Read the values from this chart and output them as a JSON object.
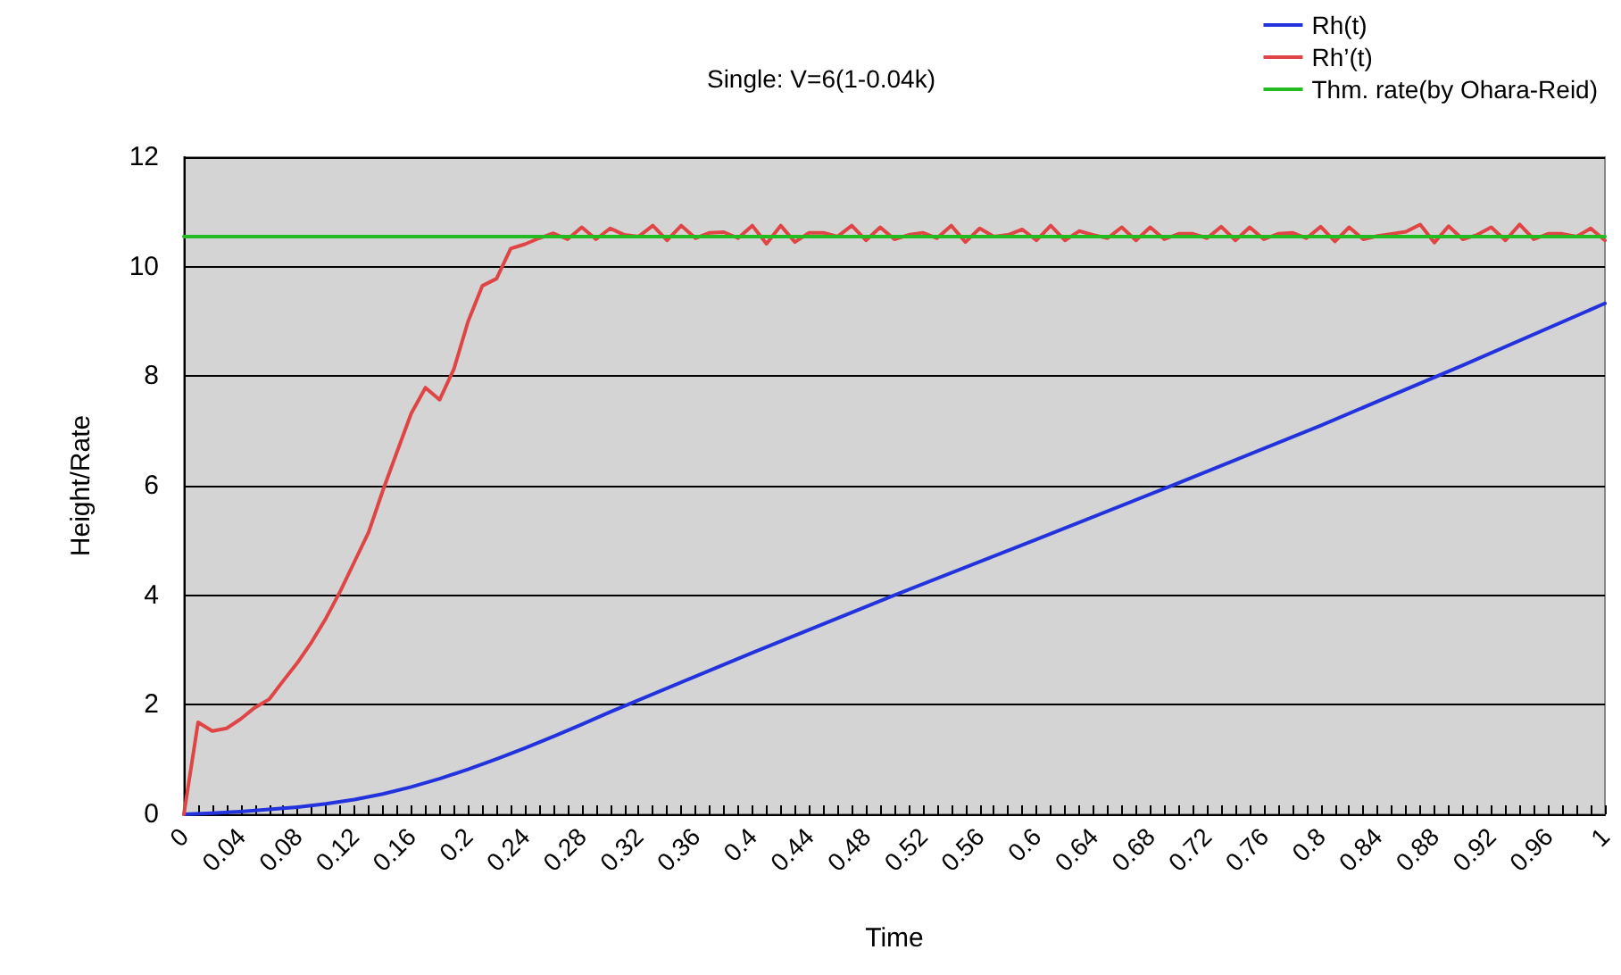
{
  "chart_data": {
    "type": "line",
    "title": "Single: V=6(1-0.04k)",
    "xlabel": "Time",
    "ylabel": "Height/Rate",
    "xlim": [
      0,
      1
    ],
    "ylim": [
      0,
      12
    ],
    "yticks": [
      0,
      2,
      4,
      6,
      8,
      10,
      12
    ],
    "xticks": [
      0,
      {
        "value": 0.01,
        "label": null
      },
      {
        "value": 0.02,
        "label": null
      },
      {
        "value": 0.03,
        "label": null
      },
      0.04,
      {
        "value": 0.05,
        "label": null
      },
      {
        "value": 0.06,
        "label": null
      },
      {
        "value": 0.07,
        "label": null
      },
      0.08,
      {
        "value": 0.09,
        "label": null
      },
      {
        "value": 0.1,
        "label": null
      },
      {
        "value": 0.11,
        "label": null
      },
      0.12,
      {
        "value": 0.13,
        "label": null
      },
      {
        "value": 0.14,
        "label": null
      },
      {
        "value": 0.15,
        "label": null
      },
      0.16,
      {
        "value": 0.17,
        "label": null
      },
      {
        "value": 0.18,
        "label": null
      },
      {
        "value": 0.19,
        "label": null
      },
      0.2,
      {
        "value": 0.21,
        "label": null
      },
      {
        "value": 0.22,
        "label": null
      },
      {
        "value": 0.23,
        "label": null
      },
      0.24,
      {
        "value": 0.25,
        "label": null
      },
      {
        "value": 0.26,
        "label": null
      },
      {
        "value": 0.27,
        "label": null
      },
      0.28,
      {
        "value": 0.29,
        "label": null
      },
      {
        "value": 0.3,
        "label": null
      },
      {
        "value": 0.31,
        "label": null
      },
      0.32,
      {
        "value": 0.33,
        "label": null
      },
      {
        "value": 0.34,
        "label": null
      },
      {
        "value": 0.35,
        "label": null
      },
      0.36,
      {
        "value": 0.37,
        "label": null
      },
      {
        "value": 0.38,
        "label": null
      },
      {
        "value": 0.39,
        "label": null
      },
      0.4,
      {
        "value": 0.41,
        "label": null
      },
      {
        "value": 0.42,
        "label": null
      },
      {
        "value": 0.43,
        "label": null
      },
      0.44,
      {
        "value": 0.45,
        "label": null
      },
      {
        "value": 0.46,
        "label": null
      },
      {
        "value": 0.47,
        "label": null
      },
      0.48,
      {
        "value": 0.49,
        "label": null
      },
      {
        "value": 0.5,
        "label": null
      },
      {
        "value": 0.51,
        "label": null
      },
      0.52,
      {
        "value": 0.53,
        "label": null
      },
      {
        "value": 0.54,
        "label": null
      },
      {
        "value": 0.55,
        "label": null
      },
      0.56,
      {
        "value": 0.57,
        "label": null
      },
      {
        "value": 0.58,
        "label": null
      },
      {
        "value": 0.59,
        "label": null
      },
      0.6,
      {
        "value": 0.61,
        "label": null
      },
      {
        "value": 0.62,
        "label": null
      },
      {
        "value": 0.63,
        "label": null
      },
      0.64,
      {
        "value": 0.65,
        "label": null
      },
      {
        "value": 0.66,
        "label": null
      },
      {
        "value": 0.67,
        "label": null
      },
      0.68,
      {
        "value": 0.69,
        "label": null
      },
      {
        "value": 0.7,
        "label": null
      },
      {
        "value": 0.71,
        "label": null
      },
      0.72,
      {
        "value": 0.73,
        "label": null
      },
      {
        "value": 0.74,
        "label": null
      },
      {
        "value": 0.75,
        "label": null
      },
      0.76,
      {
        "value": 0.77,
        "label": null
      },
      {
        "value": 0.78,
        "label": null
      },
      {
        "value": 0.79,
        "label": null
      },
      0.8,
      {
        "value": 0.81,
        "label": null
      },
      {
        "value": 0.82,
        "label": null
      },
      {
        "value": 0.83,
        "label": null
      },
      0.84,
      {
        "value": 0.85,
        "label": null
      },
      {
        "value": 0.86,
        "label": null
      },
      {
        "value": 0.87,
        "label": null
      },
      0.88,
      {
        "value": 0.89,
        "label": null
      },
      {
        "value": 0.9,
        "label": null
      },
      {
        "value": 0.91,
        "label": null
      },
      0.92,
      {
        "value": 0.93,
        "label": null
      },
      {
        "value": 0.94,
        "label": null
      },
      {
        "value": 0.95,
        "label": null
      },
      0.96,
      {
        "value": 0.97,
        "label": null
      },
      {
        "value": 0.98,
        "label": null
      },
      {
        "value": 0.99,
        "label": null
      },
      1
    ],
    "grid": "y",
    "legend": "top right",
    "marker": "none",
    "line_style": "solid",
    "series": [
      {
        "name": "Rh(t)",
        "color": "#2233dd",
        "x": [
          0,
          0.02,
          0.04,
          0.06,
          0.08,
          0.1,
          0.12,
          0.14,
          0.16,
          0.18,
          0.2,
          0.22,
          0.24,
          0.26,
          0.28,
          0.3,
          0.4,
          0.5,
          0.6,
          0.7,
          0.8,
          0.9,
          1
        ],
        "values": [
          0,
          0.02,
          0.05,
          0.09,
          0.13,
          0.19,
          0.27,
          0.37,
          0.5,
          0.65,
          0.82,
          1.01,
          1.21,
          1.42,
          1.64,
          1.87,
          2.95,
          4.0,
          5.02,
          6.05,
          7.1,
          8.2,
          9.33
        ]
      },
      {
        "name": "Rh’(t)",
        "color": "#e04545",
        "x": [
          0,
          0.01,
          0.02,
          0.03,
          0.04,
          0.05,
          0.06,
          0.07,
          0.08,
          0.09,
          0.1,
          0.11,
          0.12,
          0.13,
          0.14,
          0.15,
          0.16,
          0.17,
          0.18,
          0.19,
          0.2,
          0.21,
          0.22,
          0.23,
          0.24,
          0.25,
          0.26,
          0.27,
          0.28,
          0.29,
          0.3,
          0.31,
          0.32,
          0.33,
          0.34,
          0.35,
          0.36,
          0.37,
          0.38,
          0.39,
          0.4,
          0.41,
          0.42,
          0.43,
          0.44,
          0.45,
          0.46,
          0.47,
          0.48,
          0.49,
          0.5,
          0.51,
          0.52,
          0.53,
          0.54,
          0.55,
          0.56,
          0.57,
          0.58,
          0.59,
          0.6,
          0.61,
          0.62,
          0.63,
          0.64,
          0.65,
          0.66,
          0.67,
          0.68,
          0.69,
          0.7,
          0.71,
          0.72,
          0.73,
          0.74,
          0.75,
          0.76,
          0.77,
          0.78,
          0.79,
          0.8,
          0.81,
          0.82,
          0.83,
          0.84,
          0.85,
          0.86,
          0.87,
          0.88,
          0.89,
          0.9,
          0.91,
          0.92,
          0.93,
          0.94,
          0.95,
          0.96,
          0.97,
          0.98,
          0.99,
          1
        ],
        "values": [
          0,
          1.68,
          1.52,
          1.57,
          1.74,
          1.95,
          2.1,
          2.44,
          2.77,
          3.15,
          3.58,
          4.07,
          4.61,
          5.15,
          5.91,
          6.62,
          7.32,
          7.79,
          7.57,
          8.13,
          9.0,
          9.65,
          9.78,
          10.33,
          10.41,
          10.52,
          10.61,
          10.5,
          10.72,
          10.5,
          10.7,
          10.58,
          10.55,
          10.75,
          10.48,
          10.75,
          10.52,
          10.62,
          10.63,
          10.52,
          10.75,
          10.42,
          10.75,
          10.45,
          10.62,
          10.62,
          10.55,
          10.75,
          10.48,
          10.72,
          10.5,
          10.58,
          10.62,
          10.52,
          10.75,
          10.45,
          10.7,
          10.55,
          10.58,
          10.68,
          10.48,
          10.75,
          10.48,
          10.65,
          10.58,
          10.52,
          10.72,
          10.48,
          10.72,
          10.5,
          10.6,
          10.6,
          10.52,
          10.73,
          10.48,
          10.72,
          10.5,
          10.6,
          10.62,
          10.52,
          10.73,
          10.46,
          10.72,
          10.5,
          10.56,
          10.6,
          10.64,
          10.77,
          10.44,
          10.74,
          10.5,
          10.58,
          10.72,
          10.48,
          10.77,
          10.5,
          10.6,
          10.6,
          10.55,
          10.7,
          10.48
        ]
      },
      {
        "name": "Thm. rate(by Ohara-Reid)",
        "color": "#22bb22",
        "x": [
          0,
          1
        ],
        "values": [
          10.55,
          10.55
        ]
      }
    ]
  }
}
